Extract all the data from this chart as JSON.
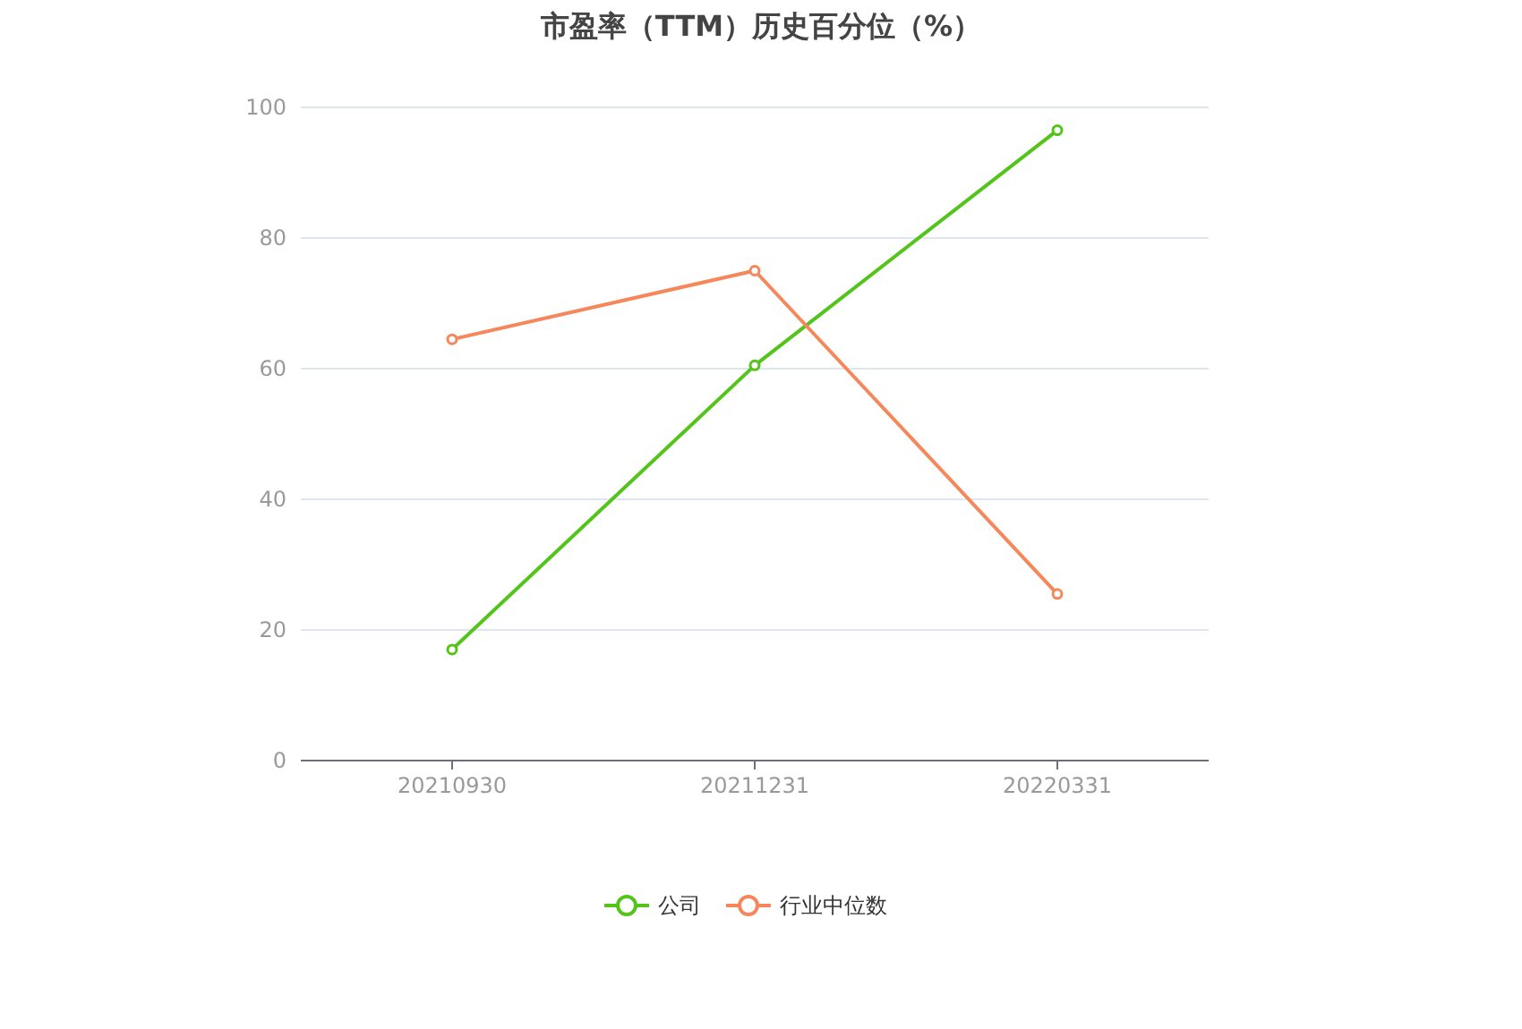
{
  "chart_data": {
    "type": "line",
    "title": "市盈率（TTM）历史百分位（%）",
    "categories": [
      "20210930",
      "20211231",
      "20220331"
    ],
    "series": [
      {
        "name": "公司",
        "color": "#52c41a",
        "values": [
          17,
          60.5,
          96.5
        ]
      },
      {
        "name": "行业中位数",
        "color": "#f5875a",
        "values": [
          64.5,
          75,
          25.5
        ]
      }
    ],
    "ylim": [
      0,
      100
    ],
    "yticks": [
      0,
      20,
      40,
      60,
      80,
      100
    ],
    "grid": "y",
    "legend": "bottom",
    "marker": "circle"
  }
}
